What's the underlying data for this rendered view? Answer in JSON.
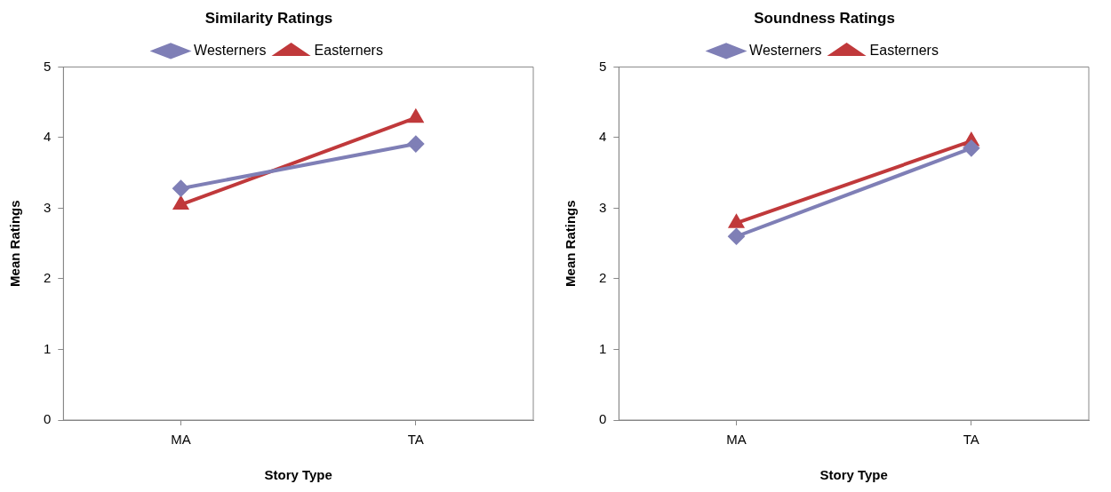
{
  "chart_data": [
    {
      "type": "line",
      "title": "Similarity Ratings",
      "xlabel": "Story Type",
      "ylabel": "Mean Ratings",
      "categories": [
        "MA",
        "TA"
      ],
      "ylim": [
        0,
        5
      ],
      "yticks": [
        0,
        1,
        2,
        3,
        4,
        5
      ],
      "grid": false,
      "legend": "top",
      "line_style": "solid",
      "series": [
        {
          "name": "Westerners",
          "color": "#7f7fb6",
          "marker": "diamond",
          "values": [
            3.28,
            3.91
          ]
        },
        {
          "name": "Easterners",
          "color": "#c0393b",
          "marker": "triangle",
          "values": [
            3.05,
            4.28
          ]
        }
      ]
    },
    {
      "type": "line",
      "title": "Soundness Ratings",
      "xlabel": "Story Type",
      "ylabel": "Mean Ratings",
      "categories": [
        "MA",
        "TA"
      ],
      "ylim": [
        0,
        5
      ],
      "yticks": [
        0,
        1,
        2,
        3,
        4,
        5
      ],
      "grid": false,
      "legend": "top",
      "line_style": "solid",
      "series": [
        {
          "name": "Westerners",
          "color": "#7f7fb6",
          "marker": "diamond",
          "values": [
            2.6,
            3.85
          ]
        },
        {
          "name": "Easterners",
          "color": "#c0393b",
          "marker": "triangle",
          "values": [
            2.79,
            3.95
          ]
        }
      ]
    }
  ]
}
